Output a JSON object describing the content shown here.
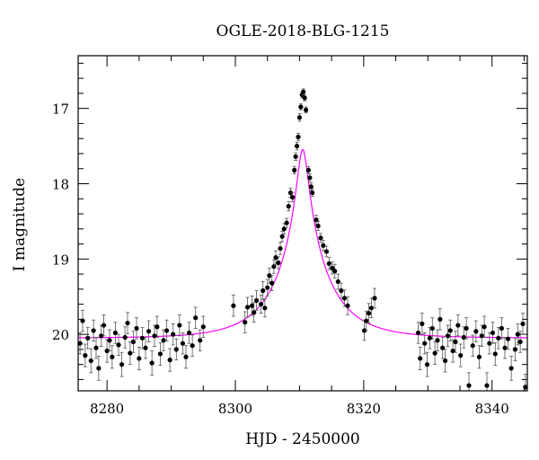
{
  "chart_data": {
    "type": "scatter",
    "title": "OGLE-2018-BLG-1215",
    "xlabel": "HJD - 2450000",
    "ylabel": "I magnitude",
    "xlim": [
      8275.5,
      8345.5
    ],
    "ylim": [
      20.75,
      16.3
    ],
    "y_inverted": true,
    "x_ticks": [
      8280,
      8300,
      8320,
      8340
    ],
    "y_ticks": [
      17,
      18,
      19,
      20
    ],
    "minor_ticks": true,
    "grid": false,
    "model": {
      "name": "",
      "color": "#ff00ff",
      "baseline_mag": 20.05,
      "t0": 8310.5,
      "u0": 0.1,
      "tE": 8.0
    },
    "series": [
      {
        "name": "",
        "marker_color": "#000000",
        "error_bars": true,
        "points": [
          [
            8275.8,
            20.12,
            0.14
          ],
          [
            8276.2,
            19.82,
            0.14
          ],
          [
            8276.6,
            20.28,
            0.15
          ],
          [
            8277.0,
            20.05,
            0.14
          ],
          [
            8277.5,
            20.35,
            0.16
          ],
          [
            8277.9,
            19.95,
            0.14
          ],
          [
            8278.3,
            20.18,
            0.14
          ],
          [
            8278.7,
            20.45,
            0.16
          ],
          [
            8279.1,
            20.02,
            0.14
          ],
          [
            8279.5,
            19.88,
            0.14
          ],
          [
            8280.0,
            20.22,
            0.15
          ],
          [
            8280.4,
            20.08,
            0.14
          ],
          [
            8280.8,
            20.3,
            0.15
          ],
          [
            8281.3,
            19.98,
            0.14
          ],
          [
            8281.8,
            20.14,
            0.14
          ],
          [
            8282.3,
            20.4,
            0.16
          ],
          [
            8282.8,
            20.04,
            0.14
          ],
          [
            8283.2,
            19.85,
            0.14
          ],
          [
            8283.6,
            20.25,
            0.15
          ],
          [
            8284.1,
            20.1,
            0.14
          ],
          [
            8284.6,
            19.92,
            0.14
          ],
          [
            8285.0,
            20.32,
            0.15
          ],
          [
            8285.5,
            20.05,
            0.14
          ],
          [
            8286.0,
            20.18,
            0.14
          ],
          [
            8286.5,
            19.96,
            0.14
          ],
          [
            8287.0,
            20.38,
            0.16
          ],
          [
            8287.4,
            20.02,
            0.14
          ],
          [
            8287.8,
            19.9,
            0.14
          ],
          [
            8288.3,
            20.26,
            0.15
          ],
          [
            8288.8,
            20.08,
            0.14
          ],
          [
            8289.3,
            19.95,
            0.14
          ],
          [
            8289.8,
            20.34,
            0.15
          ],
          [
            8290.3,
            20.0,
            0.14
          ],
          [
            8290.8,
            20.2,
            0.14
          ],
          [
            8291.3,
            19.88,
            0.14
          ],
          [
            8291.8,
            20.12,
            0.14
          ],
          [
            8292.3,
            20.3,
            0.15
          ],
          [
            8292.8,
            19.98,
            0.14
          ],
          [
            8293.3,
            20.15,
            0.14
          ],
          [
            8293.8,
            19.78,
            0.14
          ],
          [
            8294.5,
            20.08,
            0.14
          ],
          [
            8295.0,
            19.9,
            0.14
          ],
          [
            8299.7,
            19.62,
            0.14
          ],
          [
            8301.5,
            19.84,
            0.14
          ],
          [
            8301.9,
            19.64,
            0.13
          ],
          [
            8302.6,
            19.62,
            0.13
          ],
          [
            8302.9,
            19.71,
            0.13
          ],
          [
            8303.3,
            19.55,
            0.13
          ],
          [
            8304.0,
            19.6,
            0.12
          ],
          [
            8304.3,
            19.42,
            0.12
          ],
          [
            8304.6,
            19.65,
            0.12
          ],
          [
            8305.0,
            19.38,
            0.11
          ],
          [
            8305.3,
            19.22,
            0.1
          ],
          [
            8305.7,
            19.32,
            0.1
          ],
          [
            8306.0,
            19.1,
            0.09
          ],
          [
            8306.3,
            18.98,
            0.09
          ],
          [
            8306.7,
            19.05,
            0.08
          ],
          [
            8307.0,
            18.86,
            0.08
          ],
          [
            8307.3,
            18.7,
            0.07
          ],
          [
            8307.6,
            18.6,
            0.07
          ],
          [
            8308.0,
            18.52,
            0.06
          ],
          [
            8308.3,
            18.3,
            0.06
          ],
          [
            8308.6,
            18.12,
            0.06
          ],
          [
            8308.9,
            18.18,
            0.06
          ],
          [
            8309.2,
            17.82,
            0.05
          ],
          [
            8309.4,
            17.64,
            0.05
          ],
          [
            8309.6,
            17.5,
            0.05
          ],
          [
            8309.8,
            17.38,
            0.05
          ],
          [
            8310.0,
            17.12,
            0.05
          ],
          [
            8310.2,
            16.98,
            0.04
          ],
          [
            8310.4,
            16.82,
            0.04
          ],
          [
            8310.6,
            16.78,
            0.04
          ],
          [
            8310.8,
            16.86,
            0.04
          ],
          [
            8311.0,
            17.02,
            0.04
          ],
          [
            8311.4,
            17.82,
            0.05
          ],
          [
            8311.6,
            17.92,
            0.05
          ],
          [
            8311.8,
            18.04,
            0.05
          ],
          [
            8312.0,
            18.12,
            0.05
          ],
          [
            8312.6,
            18.48,
            0.06
          ],
          [
            8312.9,
            18.56,
            0.06
          ],
          [
            8313.3,
            18.72,
            0.06
          ],
          [
            8313.7,
            18.82,
            0.07
          ],
          [
            8314.2,
            18.9,
            0.07
          ],
          [
            8314.6,
            19.06,
            0.08
          ],
          [
            8315.1,
            19.12,
            0.08
          ],
          [
            8315.5,
            19.16,
            0.09
          ],
          [
            8316.0,
            19.3,
            0.1
          ],
          [
            8316.5,
            19.42,
            0.1
          ],
          [
            8317.0,
            19.52,
            0.11
          ],
          [
            8317.5,
            19.62,
            0.12
          ],
          [
            8320.1,
            19.95,
            0.13
          ],
          [
            8320.4,
            19.82,
            0.13
          ],
          [
            8320.8,
            19.72,
            0.13
          ],
          [
            8321.2,
            19.65,
            0.13
          ],
          [
            8321.7,
            19.52,
            0.13
          ],
          [
            8328.5,
            19.98,
            0.14
          ],
          [
            8328.8,
            20.32,
            0.15
          ],
          [
            8329.1,
            19.86,
            0.14
          ],
          [
            8329.5,
            20.12,
            0.14
          ],
          [
            8329.9,
            20.4,
            0.16
          ],
          [
            8330.3,
            20.05,
            0.14
          ],
          [
            8330.7,
            19.92,
            0.14
          ],
          [
            8331.1,
            20.25,
            0.15
          ],
          [
            8331.5,
            20.08,
            0.14
          ],
          [
            8331.9,
            19.8,
            0.14
          ],
          [
            8332.3,
            20.18,
            0.14
          ],
          [
            8332.7,
            20.35,
            0.15
          ],
          [
            8333.1,
            20.02,
            0.14
          ],
          [
            8333.5,
            19.95,
            0.14
          ],
          [
            8333.9,
            20.22,
            0.15
          ],
          [
            8334.3,
            20.1,
            0.14
          ],
          [
            8334.7,
            19.88,
            0.14
          ],
          [
            8335.1,
            20.28,
            0.15
          ],
          [
            8335.6,
            20.04,
            0.14
          ],
          [
            8336.0,
            19.92,
            0.14
          ],
          [
            8336.4,
            20.68,
            0.17
          ],
          [
            8337.0,
            20.15,
            0.14
          ],
          [
            8337.5,
            19.96,
            0.14
          ],
          [
            8338.0,
            20.3,
            0.15
          ],
          [
            8338.4,
            20.02,
            0.14
          ],
          [
            8338.8,
            19.9,
            0.14
          ],
          [
            8339.2,
            20.68,
            0.17
          ],
          [
            8339.6,
            20.12,
            0.14
          ],
          [
            8340.1,
            19.98,
            0.14
          ],
          [
            8340.5,
            20.26,
            0.15
          ],
          [
            8341.0,
            20.05,
            0.14
          ],
          [
            8341.5,
            19.92,
            0.14
          ],
          [
            8342.0,
            20.18,
            0.14
          ],
          [
            8342.5,
            20.06,
            0.14
          ],
          [
            8343.0,
            20.45,
            0.16
          ],
          [
            8343.6,
            20.2,
            0.15
          ],
          [
            8344.0,
            20.0,
            0.14
          ],
          [
            8344.4,
            20.1,
            0.14
          ],
          [
            8344.8,
            19.86,
            0.14
          ],
          [
            8345.2,
            20.7,
            0.17
          ]
        ]
      }
    ]
  }
}
